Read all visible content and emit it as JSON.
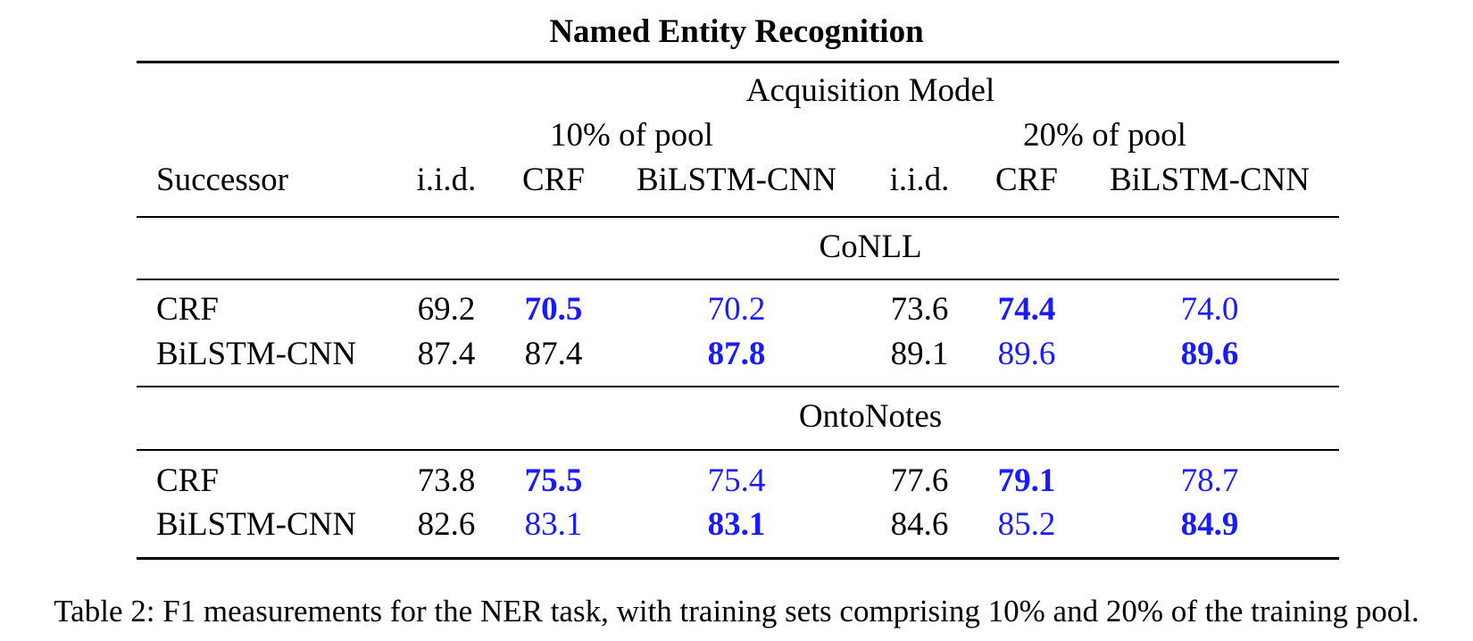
{
  "title": "Named Entity Recognition",
  "header": {
    "group": "Acquisition Model",
    "pool_10": "10% of pool",
    "pool_20": "20% of pool",
    "successor": "Successor",
    "columns": [
      "i.i.d.",
      "CRF",
      "BiLSTM-CNN",
      "i.i.d.",
      "CRF",
      "BiLSTM-CNN"
    ]
  },
  "sections": [
    {
      "name": "CoNLL",
      "rows": [
        {
          "label": "CRF",
          "cells": [
            {
              "v": "69.2",
              "blue": false,
              "bold": false
            },
            {
              "v": "70.5",
              "blue": true,
              "bold": true
            },
            {
              "v": "70.2",
              "blue": true,
              "bold": false
            },
            {
              "v": "73.6",
              "blue": false,
              "bold": false
            },
            {
              "v": "74.4",
              "blue": true,
              "bold": true
            },
            {
              "v": "74.0",
              "blue": true,
              "bold": false
            }
          ]
        },
        {
          "label": "BiLSTM-CNN",
          "cells": [
            {
              "v": "87.4",
              "blue": false,
              "bold": false
            },
            {
              "v": "87.4",
              "blue": false,
              "bold": false
            },
            {
              "v": "87.8",
              "blue": true,
              "bold": true
            },
            {
              "v": "89.1",
              "blue": false,
              "bold": false
            },
            {
              "v": "89.6",
              "blue": true,
              "bold": false
            },
            {
              "v": "89.6",
              "blue": true,
              "bold": true
            }
          ]
        }
      ]
    },
    {
      "name": "OntoNotes",
      "rows": [
        {
          "label": "CRF",
          "cells": [
            {
              "v": "73.8",
              "blue": false,
              "bold": false
            },
            {
              "v": "75.5",
              "blue": true,
              "bold": true
            },
            {
              "v": "75.4",
              "blue": true,
              "bold": false
            },
            {
              "v": "77.6",
              "blue": false,
              "bold": false
            },
            {
              "v": "79.1",
              "blue": true,
              "bold": true
            },
            {
              "v": "78.7",
              "blue": true,
              "bold": false
            }
          ]
        },
        {
          "label": "BiLSTM-CNN",
          "cells": [
            {
              "v": "82.6",
              "blue": false,
              "bold": false
            },
            {
              "v": "83.1",
              "blue": true,
              "bold": false
            },
            {
              "v": "83.1",
              "blue": true,
              "bold": true
            },
            {
              "v": "84.6",
              "blue": false,
              "bold": false
            },
            {
              "v": "85.2",
              "blue": true,
              "bold": false
            },
            {
              "v": "84.9",
              "blue": true,
              "bold": true
            }
          ]
        }
      ]
    }
  ],
  "caption": "Table 2: F1 measurements for the NER task, with training sets comprising 10% and 20% of the training pool.",
  "colors": {
    "highlight": "#1a1aff"
  }
}
